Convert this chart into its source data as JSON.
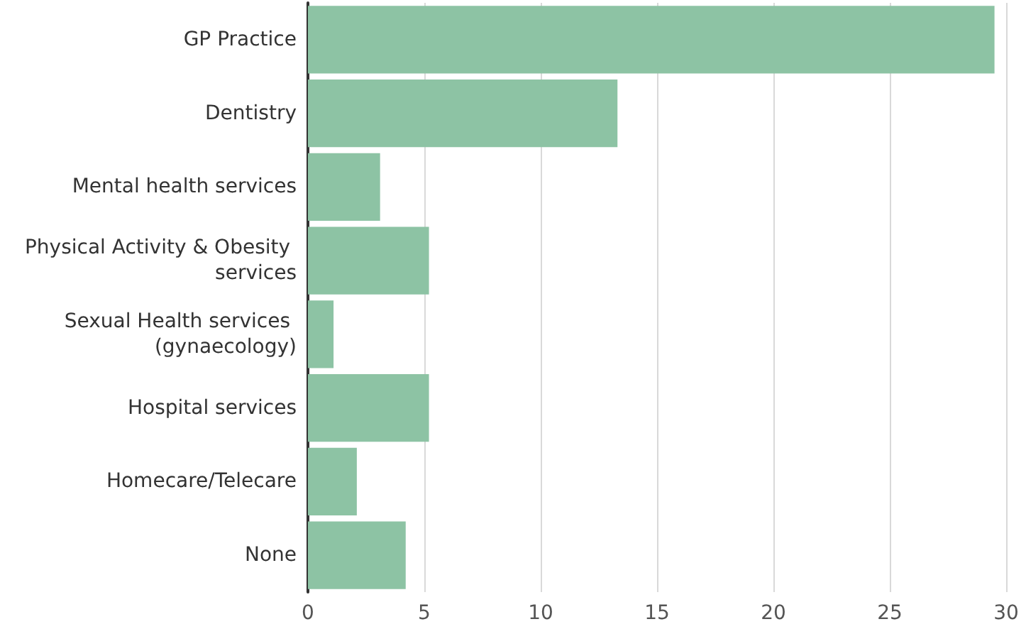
{
  "chart_data": {
    "type": "bar",
    "orientation": "horizontal",
    "categories": [
      "GP Practice",
      "Dentistry",
      "Mental health services",
      "Physical Activity & Obesity services",
      "Sexual Health services (gynaecology)",
      "Hospital services",
      "Homecare/Telecare",
      "None"
    ],
    "values": [
      29.5,
      13.3,
      3.1,
      5.2,
      1.1,
      5.2,
      2.1,
      4.2
    ],
    "color": "#8dc3a4",
    "xlim": [
      0,
      30
    ],
    "xticks": [
      0,
      5,
      10,
      15,
      20,
      25,
      30
    ],
    "grid": "x"
  }
}
